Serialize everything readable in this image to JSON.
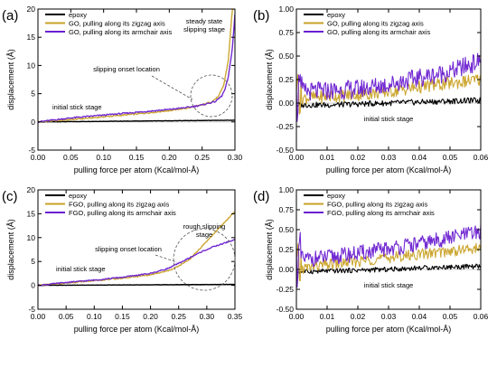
{
  "chart_data": [
    {
      "panel_label": "(a)",
      "type": "line",
      "xlabel": "pulling force per atom (Kcal/mol-Å)",
      "ylabel": "displacement (Å)",
      "xlim": [
        0,
        0.3
      ],
      "ylim": [
        -5,
        20
      ],
      "xticks": [
        "0.00",
        "0.05",
        "0.10",
        "0.15",
        "0.20",
        "0.25",
        "0.30"
      ],
      "yticks": [
        "-5",
        "0",
        "5",
        "10",
        "15",
        "20"
      ],
      "legend": "top-left",
      "series": [
        {
          "name": "epoxy",
          "color": "#000000",
          "x": [
            0,
            0.05,
            0.1,
            0.15,
            0.2,
            0.25,
            0.3
          ],
          "y": [
            0,
            0.05,
            0.1,
            0.15,
            0.2,
            0.25,
            0.3
          ]
        },
        {
          "name": "GO, pulling along its zigzag axis",
          "color": "#c9a227",
          "x": [
            0,
            0.05,
            0.1,
            0.15,
            0.2,
            0.23,
            0.25,
            0.265,
            0.275,
            0.283,
            0.29,
            0.296
          ],
          "y": [
            0,
            0.4,
            0.9,
            1.4,
            2.0,
            2.5,
            3.0,
            3.6,
            4.5,
            6.5,
            11,
            20
          ]
        },
        {
          "name": "GO, pulling along its armchair axis",
          "color": "#6a1fd0",
          "x": [
            0,
            0.05,
            0.1,
            0.15,
            0.2,
            0.23,
            0.25,
            0.27,
            0.28,
            0.285,
            0.29,
            0.296,
            0.3
          ],
          "y": [
            0,
            0.7,
            1.2,
            1.7,
            2.2,
            2.6,
            3.0,
            3.6,
            4.6,
            5.8,
            8,
            13,
            19
          ]
        }
      ],
      "annotations": [
        "initial stick stage",
        "slipping onset location",
        "steady state slipping stage"
      ]
    },
    {
      "panel_label": "(b)",
      "type": "line",
      "xlabel": "pulling force per atom (Kcal/mol-Å)",
      "ylabel": "displacement (Å)",
      "xlim": [
        0,
        0.06
      ],
      "ylim": [
        -0.5,
        1.0
      ],
      "xticks": [
        "0.00",
        "0.01",
        "0.02",
        "0.03",
        "0.04",
        "0.05",
        "0.06"
      ],
      "yticks": [
        "-0.50",
        "-0.25",
        "0.00",
        "0.25",
        "0.50",
        "0.75",
        "1.00"
      ],
      "legend": "top-left",
      "series": [
        {
          "name": "epoxy",
          "color": "#000000",
          "x": [
            0,
            0.01,
            0.02,
            0.03,
            0.04,
            0.05,
            0.06
          ],
          "y": [
            -0.02,
            -0.02,
            -0.01,
            0.0,
            0.01,
            0.02,
            0.03
          ]
        },
        {
          "name": "GO, pulling along its zigzag axis",
          "color": "#c9a227",
          "x": [
            0,
            0.01,
            0.02,
            0.03,
            0.04,
            0.05,
            0.06
          ],
          "y": [
            0.05,
            0.07,
            0.09,
            0.12,
            0.17,
            0.21,
            0.25
          ]
        },
        {
          "name": "GO, pulling along its armchair axis",
          "color": "#6a1fd0",
          "x": [
            0,
            0.01,
            0.02,
            0.03,
            0.04,
            0.05,
            0.06
          ],
          "y": [
            0.12,
            0.13,
            0.15,
            0.2,
            0.27,
            0.33,
            0.45
          ]
        }
      ],
      "annotations": [
        "initial stick stage"
      ]
    },
    {
      "panel_label": "(c)",
      "type": "line",
      "xlabel": "pulling force per atom (Kcal/mol-Å)",
      "ylabel": "displacement (Å)",
      "xlim": [
        0,
        0.35
      ],
      "ylim": [
        -5,
        20
      ],
      "xticks": [
        "0.00",
        "0.05",
        "0.10",
        "0.15",
        "0.20",
        "0.25",
        "0.30",
        "0.35"
      ],
      "yticks": [
        "-5",
        "0",
        "5",
        "10",
        "15",
        "20"
      ],
      "legend": "top-left",
      "series": [
        {
          "name": "epoxy",
          "color": "#000000",
          "x": [
            0,
            0.05,
            0.1,
            0.15,
            0.2,
            0.25,
            0.3,
            0.35
          ],
          "y": [
            0,
            0.03,
            0.06,
            0.09,
            0.12,
            0.15,
            0.18,
            0.2
          ]
        },
        {
          "name": "FGO, pulling along its zigzag axis",
          "color": "#c9a227",
          "x": [
            0,
            0.05,
            0.1,
            0.15,
            0.2,
            0.23,
            0.25,
            0.27,
            0.29,
            0.31,
            0.33,
            0.35
          ],
          "y": [
            0,
            0.5,
            1.0,
            1.5,
            2.2,
            3.0,
            4.0,
            5.5,
            8.0,
            10.5,
            13.0,
            15.5
          ]
        },
        {
          "name": "FGO, pulling along its armchair axis",
          "color": "#6a1fd0",
          "x": [
            0,
            0.05,
            0.1,
            0.15,
            0.2,
            0.23,
            0.25,
            0.27,
            0.29,
            0.31,
            0.33,
            0.35
          ],
          "y": [
            0,
            0.6,
            1.1,
            1.7,
            2.5,
            3.5,
            4.6,
            5.8,
            7.0,
            8.0,
            8.8,
            9.6
          ]
        }
      ],
      "annotations": [
        "initial stick stage",
        "slipping onset location",
        "rough slipping stage"
      ]
    },
    {
      "panel_label": "(d)",
      "type": "line",
      "xlabel": "pulling force per atom (Kcal/mol-Å)",
      "ylabel": "displacement (Å)",
      "xlim": [
        0,
        0.06
      ],
      "ylim": [
        -0.5,
        1.0
      ],
      "xticks": [
        "0.00",
        "0.01",
        "0.02",
        "0.03",
        "0.04",
        "0.05",
        "0.06"
      ],
      "yticks": [
        "-0.50",
        "-0.25",
        "0.00",
        "0.25",
        "0.50",
        "0.75",
        "1.00"
      ],
      "legend": "top-left",
      "series": [
        {
          "name": "epoxy",
          "color": "#000000",
          "x": [
            0,
            0.01,
            0.02,
            0.03,
            0.04,
            0.05,
            0.06
          ],
          "y": [
            -0.03,
            -0.02,
            -0.01,
            0.0,
            0.02,
            0.03,
            0.04
          ]
        },
        {
          "name": "FGO, pulling along its zigzag axis",
          "color": "#c9a227",
          "x": [
            0,
            0.01,
            0.02,
            0.03,
            0.04,
            0.05,
            0.06
          ],
          "y": [
            0.0,
            0.06,
            0.1,
            0.15,
            0.19,
            0.23,
            0.27
          ]
        },
        {
          "name": "FGO, pulling along its armchair axis",
          "color": "#6a1fd0",
          "x": [
            0,
            0.01,
            0.02,
            0.03,
            0.04,
            0.05,
            0.06
          ],
          "y": [
            0.12,
            0.15,
            0.2,
            0.26,
            0.32,
            0.4,
            0.47
          ]
        }
      ],
      "annotations": [
        "initial stick stage"
      ]
    }
  ]
}
